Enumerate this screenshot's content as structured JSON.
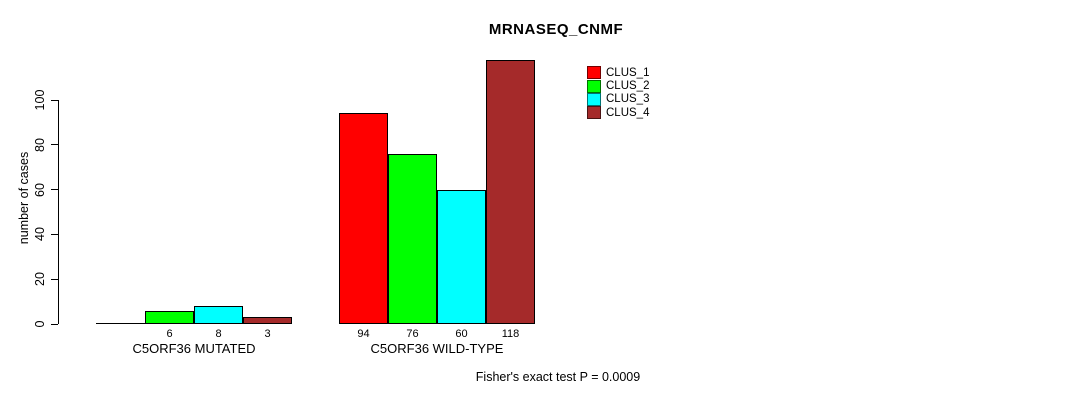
{
  "title": "MRNASEQ_CNMF",
  "footer": "Fisher's exact test P = 0.0009",
  "chart_data": {
    "type": "bar",
    "title": "MRNASEQ_CNMF",
    "xlabel": "",
    "ylabel": "number of cases",
    "ylim": [
      0,
      100
    ],
    "yticks": [
      0,
      20,
      40,
      60,
      80,
      100
    ],
    "grid": false,
    "legend_position": "top-right",
    "annotation": "Fisher's exact test P = 0.0009",
    "series_names": [
      "CLUS_1",
      "CLUS_2",
      "CLUS_3",
      "CLUS_4"
    ],
    "series_colors": [
      "#ff0000",
      "#00ff00",
      "#00ffff",
      "#a52a2a"
    ],
    "groups": [
      {
        "label": "C5ORF36 MUTATED",
        "values": [
          0,
          6,
          8,
          3
        ],
        "value_labels": [
          "",
          "6",
          "8",
          "3"
        ]
      },
      {
        "label": "C5ORF36 WILD-TYPE",
        "values": [
          94,
          76,
          60,
          118
        ],
        "value_labels": [
          "94",
          "76",
          "60",
          "118"
        ]
      }
    ]
  },
  "legend": {
    "items": [
      {
        "label": "CLUS_1",
        "color": "#ff0000"
      },
      {
        "label": "CLUS_2",
        "color": "#00ff00"
      },
      {
        "label": "CLUS_3",
        "color": "#00ffff"
      },
      {
        "label": "CLUS_4",
        "color": "#a52a2a"
      }
    ]
  }
}
